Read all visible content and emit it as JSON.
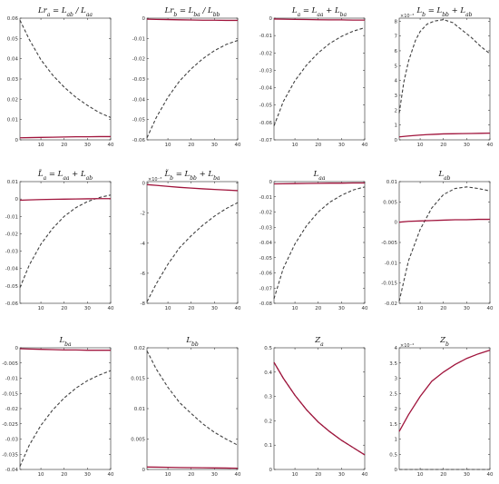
{
  "figure": {
    "x_ticks": [
      "10",
      "20",
      "30",
      "40"
    ]
  },
  "chart_data": [
    {
      "type": "line",
      "title": "Lr_a = L_ab / L_aa",
      "xlim": [
        1,
        40
      ],
      "ylim": [
        0,
        0.06
      ],
      "yticks": [
        "0",
        "0.01",
        "0.02",
        "0.03",
        "0.04",
        "0.05",
        "0.06"
      ],
      "exponent": "",
      "x": [
        1,
        5,
        10,
        15,
        20,
        25,
        30,
        35,
        40
      ],
      "series": [
        {
          "style": "dashed",
          "color": "#404040",
          "values": [
            0.059,
            0.0495,
            0.0395,
            0.032,
            0.026,
            0.021,
            0.017,
            0.0135,
            0.011
          ]
        },
        {
          "style": "solid",
          "color": "#a0143c",
          "values": [
            0.001,
            0.0011,
            0.0012,
            0.0013,
            0.0014,
            0.0015,
            0.0015,
            0.0016,
            0.0016
          ]
        }
      ]
    },
    {
      "type": "line",
      "title": "Lr_b = L_ba / L_bb",
      "xlim": [
        1,
        40
      ],
      "ylim": [
        -0.06,
        0
      ],
      "yticks": [
        "-0.06",
        "-0.05",
        "-0.04",
        "-0.03",
        "-0.02",
        "-0.01",
        "0"
      ],
      "exponent": "",
      "x": [
        1,
        5,
        10,
        15,
        20,
        25,
        30,
        35,
        40
      ],
      "series": [
        {
          "style": "dashed",
          "color": "#404040",
          "values": [
            -0.059,
            -0.049,
            -0.039,
            -0.031,
            -0.025,
            -0.02,
            -0.016,
            -0.013,
            -0.011
          ]
        },
        {
          "style": "solid",
          "color": "#a0143c",
          "values": [
            -0.0005,
            -0.0006,
            -0.0007,
            -0.0008,
            -0.0009,
            -0.001,
            -0.001,
            -0.0011,
            -0.0011
          ]
        }
      ]
    },
    {
      "type": "line",
      "title": "L_a = L_aa + L_ba",
      "xlim": [
        1,
        40
      ],
      "ylim": [
        -0.07,
        0
      ],
      "yticks": [
        "-0.07",
        "-0.06",
        "-0.05",
        "-0.04",
        "-0.03",
        "-0.02",
        "-0.01",
        "0"
      ],
      "exponent": "",
      "x": [
        1,
        5,
        10,
        15,
        20,
        25,
        30,
        35,
        40
      ],
      "series": [
        {
          "style": "dashed",
          "color": "#404040",
          "values": [
            -0.062,
            -0.048,
            -0.036,
            -0.027,
            -0.02,
            -0.0145,
            -0.0105,
            -0.0075,
            -0.0055
          ]
        },
        {
          "style": "solid",
          "color": "#a0143c",
          "values": [
            -0.0005,
            -0.0006,
            -0.0007,
            -0.0008,
            -0.0009,
            -0.001,
            -0.001,
            -0.0011,
            -0.0011
          ]
        }
      ]
    },
    {
      "type": "line",
      "title": "L_b = L_bb + L_ab",
      "xlim": [
        1,
        40
      ],
      "ylim": [
        0,
        0.0082
      ],
      "yticks": [
        "0",
        "1",
        "2",
        "3",
        "4",
        "5",
        "6",
        "7",
        "8"
      ],
      "ytick_values": [
        0,
        0.001,
        0.002,
        0.003,
        0.004,
        0.005,
        0.006,
        0.007,
        0.008
      ],
      "exponent": "×10⁻³",
      "x": [
        1,
        3,
        5,
        8,
        10,
        13,
        16,
        20,
        24,
        28,
        32,
        36,
        40
      ],
      "series": [
        {
          "style": "dashed",
          "color": "#404040",
          "values": [
            0.0018,
            0.0039,
            0.0053,
            0.0067,
            0.0073,
            0.0078,
            0.008,
            0.0081,
            0.0079,
            0.0074,
            0.0069,
            0.0063,
            0.0058
          ]
        },
        {
          "style": "solid",
          "color": "#a0143c",
          "values": [
            0.0002,
            0.00023,
            0.00026,
            0.0003,
            0.00032,
            0.00035,
            0.00037,
            0.0004,
            0.00041,
            0.00042,
            0.00043,
            0.00044,
            0.00045
          ]
        }
      ]
    },
    {
      "type": "line",
      "title": "L̃_a = L_aa + L_ab",
      "xlim": [
        1,
        40
      ],
      "ylim": [
        -0.06,
        0.01
      ],
      "yticks": [
        "-0.06",
        "-0.05",
        "-0.04",
        "-0.03",
        "-0.02",
        "-0.01",
        "0",
        "0.01"
      ],
      "exponent": "",
      "x": [
        1,
        5,
        10,
        15,
        20,
        25,
        30,
        35,
        40
      ],
      "series": [
        {
          "style": "dashed",
          "color": "#404040",
          "values": [
            -0.051,
            -0.038,
            -0.026,
            -0.017,
            -0.01,
            -0.005,
            -0.0015,
            0.0008,
            0.0023
          ]
        },
        {
          "style": "solid",
          "color": "#a0143c",
          "values": [
            -0.0007,
            -0.0005,
            -0.0003,
            -0.0002,
            -0.0001,
            0.0,
            0.0001,
            0.0002,
            0.0002
          ]
        }
      ]
    },
    {
      "type": "line",
      "title": "L̃_b = L_bb + L_ba",
      "xlim": [
        1,
        40
      ],
      "ylim": [
        -0.008,
        0.0001
      ],
      "yticks": [
        "-8",
        "-6",
        "-4",
        "-2",
        "0"
      ],
      "ytick_values": [
        -0.008,
        -0.006,
        -0.004,
        -0.002,
        0
      ],
      "exponent": "×10⁻³",
      "x": [
        1,
        5,
        10,
        15,
        20,
        25,
        30,
        35,
        40
      ],
      "series": [
        {
          "style": "dashed",
          "color": "#404040",
          "values": [
            -0.0079,
            -0.0067,
            -0.0054,
            -0.0043,
            -0.0035,
            -0.0028,
            -0.0022,
            -0.0017,
            -0.0013
          ]
        },
        {
          "style": "solid",
          "color": "#a0143c",
          "values": [
            -0.0001,
            -0.00015,
            -0.00022,
            -0.00028,
            -0.00033,
            -0.00038,
            -0.00042,
            -0.00046,
            -0.0005
          ]
        }
      ]
    },
    {
      "type": "line",
      "title": "L_aa",
      "xlim": [
        1,
        40
      ],
      "ylim": [
        -0.08,
        0
      ],
      "yticks": [
        "-0.08",
        "-0.07",
        "-0.06",
        "-0.05",
        "-0.04",
        "-0.03",
        "-0.02",
        "-0.01",
        "0"
      ],
      "exponent": "",
      "x": [
        1,
        5,
        10,
        15,
        20,
        25,
        30,
        35,
        40
      ],
      "series": [
        {
          "style": "dashed",
          "color": "#404040",
          "values": [
            -0.077,
            -0.057,
            -0.041,
            -0.029,
            -0.02,
            -0.0135,
            -0.009,
            -0.0055,
            -0.0035
          ]
        },
        {
          "style": "solid",
          "color": "#a0143c",
          "values": [
            -0.0015,
            -0.0014,
            -0.0013,
            -0.0012,
            -0.0011,
            -0.001,
            -0.001,
            -0.0009,
            -0.0009
          ]
        }
      ]
    },
    {
      "type": "line",
      "title": "L_ab",
      "xlim": [
        1,
        40
      ],
      "ylim": [
        -0.02,
        0.01
      ],
      "yticks": [
        "-0.02",
        "-0.015",
        "-0.01",
        "-0.005",
        "0",
        "0.005",
        "0.01"
      ],
      "exponent": "",
      "x": [
        1,
        5,
        10,
        15,
        20,
        25,
        30,
        35,
        40
      ],
      "series": [
        {
          "style": "dashed",
          "color": "#404040",
          "values": [
            -0.0195,
            -0.0095,
            -0.0018,
            0.0035,
            0.0068,
            0.0083,
            0.0087,
            0.0083,
            0.0077
          ]
        },
        {
          "style": "solid",
          "color": "#a0143c",
          "values": [
            0.0,
            0.0002,
            0.0003,
            0.0004,
            0.0005,
            0.0006,
            0.0006,
            0.0007,
            0.0007
          ]
        }
      ]
    },
    {
      "type": "line",
      "title": "L_ba",
      "xlim": [
        1,
        40
      ],
      "ylim": [
        -0.04,
        0
      ],
      "yticks": [
        "-0.04",
        "-0.035",
        "-0.03",
        "-0.025",
        "-0.02",
        "-0.015",
        "-0.01",
        "-0.005",
        "0"
      ],
      "exponent": "",
      "x": [
        1,
        5,
        10,
        15,
        20,
        25,
        30,
        35,
        40
      ],
      "series": [
        {
          "style": "dashed",
          "color": "#404040",
          "values": [
            -0.039,
            -0.032,
            -0.0255,
            -0.0205,
            -0.0165,
            -0.0133,
            -0.0108,
            -0.009,
            -0.0075
          ]
        },
        {
          "style": "solid",
          "color": "#a0143c",
          "values": [
            -0.0003,
            -0.0004,
            -0.0005,
            -0.0006,
            -0.0007,
            -0.0007,
            -0.0008,
            -0.0008,
            -0.0008
          ]
        }
      ]
    },
    {
      "type": "line",
      "title": "L_bb",
      "xlim": [
        1,
        40
      ],
      "ylim": [
        0,
        0.02
      ],
      "yticks": [
        "0",
        "0.005",
        "0.01",
        "0.015",
        "0.02"
      ],
      "exponent": "",
      "x": [
        1,
        5,
        10,
        15,
        20,
        25,
        30,
        35,
        40
      ],
      "series": [
        {
          "style": "dashed",
          "color": "#404040",
          "values": [
            0.0195,
            0.0165,
            0.0135,
            0.011,
            0.0092,
            0.0075,
            0.0061,
            0.005,
            0.004
          ]
        },
        {
          "style": "solid",
          "color": "#a0143c",
          "values": [
            0.0004,
            0.00038,
            0.00035,
            0.00032,
            0.0003,
            0.00028,
            0.00025,
            0.00023,
            0.0002
          ]
        }
      ]
    },
    {
      "type": "line",
      "title": "Z_a",
      "xlim": [
        1,
        40
      ],
      "ylim": [
        0,
        0.5
      ],
      "yticks": [
        "0",
        "0.1",
        "0.2",
        "0.3",
        "0.4",
        "0.5"
      ],
      "exponent": "",
      "x": [
        1,
        5,
        10,
        15,
        20,
        25,
        30,
        35,
        40
      ],
      "series": [
        {
          "style": "dashed",
          "color": "#404040",
          "values": [
            0.44,
            0.375,
            0.305,
            0.245,
            0.195,
            0.155,
            0.12,
            0.09,
            0.06
          ]
        },
        {
          "style": "solid",
          "color": "#a0143c",
          "values": [
            0.44,
            0.375,
            0.305,
            0.245,
            0.195,
            0.155,
            0.12,
            0.09,
            0.06
          ]
        }
      ]
    },
    {
      "type": "line",
      "title": "Z_b",
      "xlim": [
        1,
        40
      ],
      "ylim": [
        0,
        0.0004
      ],
      "yticks": [
        "0",
        "0.5",
        "1",
        "1.5",
        "2",
        "2.5",
        "3",
        "3.5",
        "4"
      ],
      "ytick_values": [
        0,
        5e-05,
        0.0001,
        0.00015,
        0.0002,
        0.00025,
        0.0003,
        0.00035,
        0.0004
      ],
      "exponent": "×10⁻⁴",
      "x": [
        1,
        5,
        10,
        15,
        20,
        25,
        30,
        35,
        40
      ],
      "series": [
        {
          "style": "dashed",
          "color": "#404040",
          "values": [
            0,
            0,
            0,
            0,
            0,
            0,
            0,
            0,
            0
          ]
        },
        {
          "style": "solid",
          "color": "#a0143c",
          "values": [
            0.000125,
            0.00018,
            0.00024,
            0.00029,
            0.00032,
            0.000345,
            0.000365,
            0.00038,
            0.000392
          ]
        }
      ]
    }
  ]
}
